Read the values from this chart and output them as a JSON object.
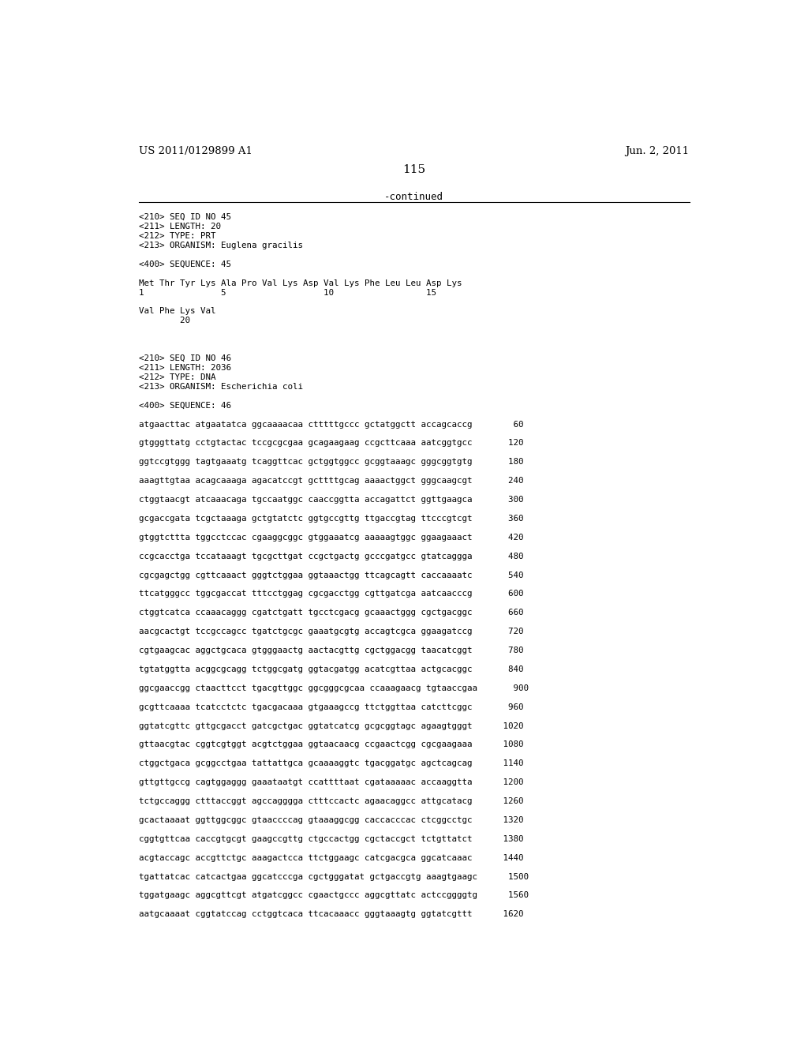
{
  "background_color": "#ffffff",
  "header_left": "US 2011/0129899 A1",
  "header_right": "Jun. 2, 2011",
  "page_number": "115",
  "continued_text": "-continued",
  "line_color": "#000000",
  "font_color": "#000000",
  "mono_font": "DejaVu Sans Mono",
  "serif_font": "DejaVu Serif",
  "content_lines": [
    "<210> SEQ ID NO 45",
    "<211> LENGTH: 20",
    "<212> TYPE: PRT",
    "<213> ORGANISM: Euglena gracilis",
    "",
    "<400> SEQUENCE: 45",
    "",
    "Met Thr Tyr Lys Ala Pro Val Lys Asp Val Lys Phe Leu Leu Asp Lys",
    "1               5                   10                  15",
    "",
    "Val Phe Lys Val",
    "        20",
    "",
    "",
    "",
    "<210> SEQ ID NO 46",
    "<211> LENGTH: 2036",
    "<212> TYPE: DNA",
    "<213> ORGANISM: Escherichia coli",
    "",
    "<400> SEQUENCE: 46",
    "",
    "atgaacttac atgaatatca ggcaaaacaa ctttttgccc gctatggctt accagcaccg        60",
    "",
    "gtgggttatg cctgtactac tccgcgcgaa gcagaagaag ccgcttcaaa aatcggtgcc       120",
    "",
    "ggtccgtggg tagtgaaatg tcaggttcac gctggtggcc gcggtaaagc gggcggtgtg       180",
    "",
    "aaagttgtaa acagcaaaga agacatccgt gcttttgcag aaaactggct gggcaagcgt       240",
    "",
    "ctggtaacgt atcaaacaga tgccaatggc caaccggtta accagattct ggttgaagca       300",
    "",
    "gcgaccgata tcgctaaaga gctgtatctc ggtgccgttg ttgaccgtag ttcccgtcgt       360",
    "",
    "gtggtcttta tggcctccac cgaaggcggc gtggaaatcg aaaaagtggc ggaagaaact       420",
    "",
    "ccgcacctga tccataaagt tgcgcttgat ccgctgactg gcccgatgcc gtatcaggga       480",
    "",
    "cgcgagctgg cgttcaaact gggtctggaa ggtaaactgg ttcagcagtt caccaaaatc       540",
    "",
    "ttcatgggcc tggcgaccat tttcctggag cgcgacctgg cgttgatcga aatcaacccg       600",
    "",
    "ctggtcatca ccaaacaggg cgatctgatt tgcctcgacg gcaaactggg cgctgacggc       660",
    "",
    "aacgcactgt tccgccagcc tgatctgcgc gaaatgcgtg accagtcgca ggaagatccg       720",
    "",
    "cgtgaagcac aggctgcaca gtgggaactg aactacgttg cgctggacgg taacatcggt       780",
    "",
    "tgtatggtta acggcgcagg tctggcgatg ggtacgatgg acatcgttaa actgcacggc       840",
    "",
    "ggcgaaccgg ctaacttcct tgacgttggc ggcgggcgcaa ccaaagaacg tgtaaccgaa       900",
    "",
    "gcgttcaaaa tcatcctctc tgacgacaaa gtgaaagccg ttctggttaa catcttcggc       960",
    "",
    "ggtatcgttc gttgcgacct gatcgctgac ggtatcatcg gcgcggtagc agaagtgggt      1020",
    "",
    "gttaacgtac cggtcgtggt acgtctggaa ggtaacaacg ccgaactcgg cgcgaagaaa      1080",
    "",
    "ctggctgaca gcggcctgaa tattattgca gcaaaaggtc tgacggatgc agctcagcag      1140",
    "",
    "gttgttgccg cagtggaggg gaaataatgt ccattttaat cgataaaaac accaaggtta      1200",
    "",
    "tctgccaggg ctttaccggt agccagggga ctttccactc agaacaggcc attgcatacg      1260",
    "",
    "gcactaaaat ggttggcggc gtaaccccag gtaaaggcgg caccacccac ctcggcctgc      1320",
    "",
    "cggtgttcaa caccgtgcgt gaagccgttg ctgccactgg cgctaccgct tctgttatct      1380",
    "",
    "acgtaccagc accgttctgc aaagactcca ttctggaagc catcgacgca ggcatcaaac      1440",
    "",
    "tgattatcac catcactgaa ggcatcccga cgctgggatat gctgaccgtg aaagtgaagc      1500",
    "",
    "tggatgaagc aggcgttcgt atgatcggcc cgaactgccc aggcgttatc actccggggtg      1560",
    "",
    "aatgcaaaat cggtatccag cctggtcaca ttcacaaacc gggtaaagtg ggtatcgttt      1620"
  ]
}
